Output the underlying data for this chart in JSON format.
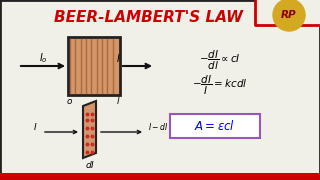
{
  "title": "BEER-LAMBERT'S LAW",
  "title_color": "#cc0000",
  "title_fontsize": 11,
  "bg_color": "#f0efe8",
  "eq1": "$-\\dfrac{dI}{dl} \\propto cI$",
  "eq2": "$-\\dfrac{dI}{I} = kcdl$",
  "eq3": "$A = \\varepsilon cl$",
  "box_fill": "#d4956a",
  "box_edge": "#222222",
  "arrow_color": "#111111",
  "label_I0": "$I_o$",
  "label_I": "$I$",
  "label_o": "$o$",
  "label_l": "$l$",
  "label_IdI": "$I-dI$",
  "label_dI": "$dI$",
  "eq3_box_color": "#9955bb",
  "stripe_color": "#a06030",
  "rp_bg": "#d4a820",
  "rp_text": "RP",
  "border_color": "#cc0000",
  "border_color2": "#222222"
}
